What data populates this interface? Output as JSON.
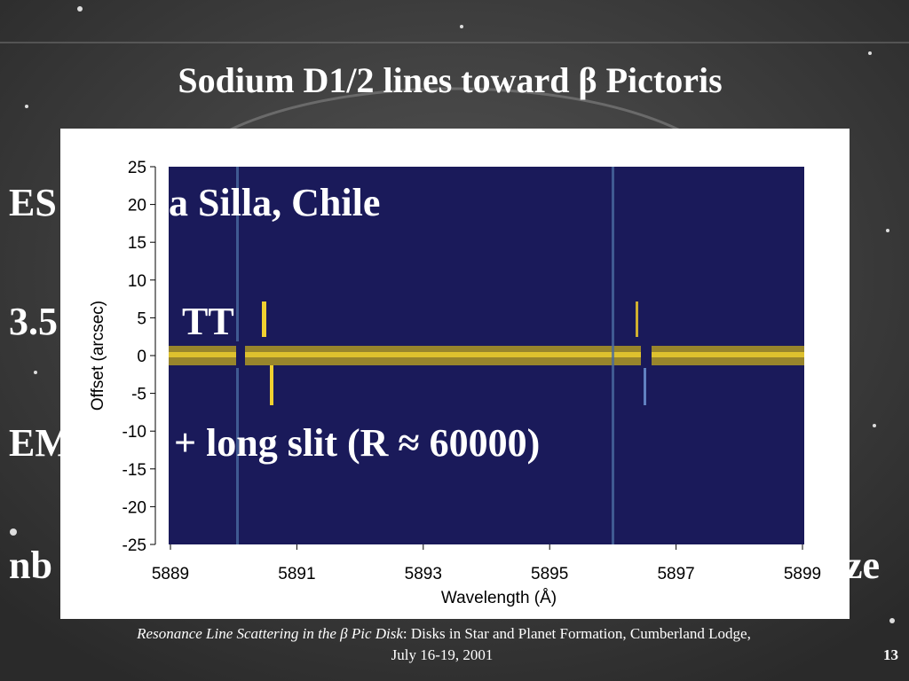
{
  "title": "Sodium D1/2 lines toward β Pictoris",
  "bullets": [
    {
      "left": "ES",
      "right": "a Silla, Chile"
    },
    {
      "left": "3.5",
      "right": "TT"
    },
    {
      "left": "EM",
      "right": "+ long slit (R ≈ 60000)"
    },
    {
      "left": "nb",
      "right": "aze"
    }
  ],
  "figure": {
    "ylabel": "Offset (arcsec)",
    "xlabel": "Wavelength (Å)",
    "ylim": [
      -25,
      25
    ],
    "yticks": [
      25,
      20,
      15,
      10,
      5,
      0,
      -5,
      -10,
      -15,
      -20,
      -25
    ],
    "xlim": [
      5889,
      5899
    ],
    "xticks": [
      5889,
      5891,
      5893,
      5895,
      5897,
      5899
    ]
  },
  "footer": {
    "italic": "Resonance Line Scattering in the β Pic Disk",
    "rest": ": Disks in Star and Planet Formation, Cumberland Lodge,",
    "line2": "July 16-19, 2001"
  },
  "page_number": "13"
}
